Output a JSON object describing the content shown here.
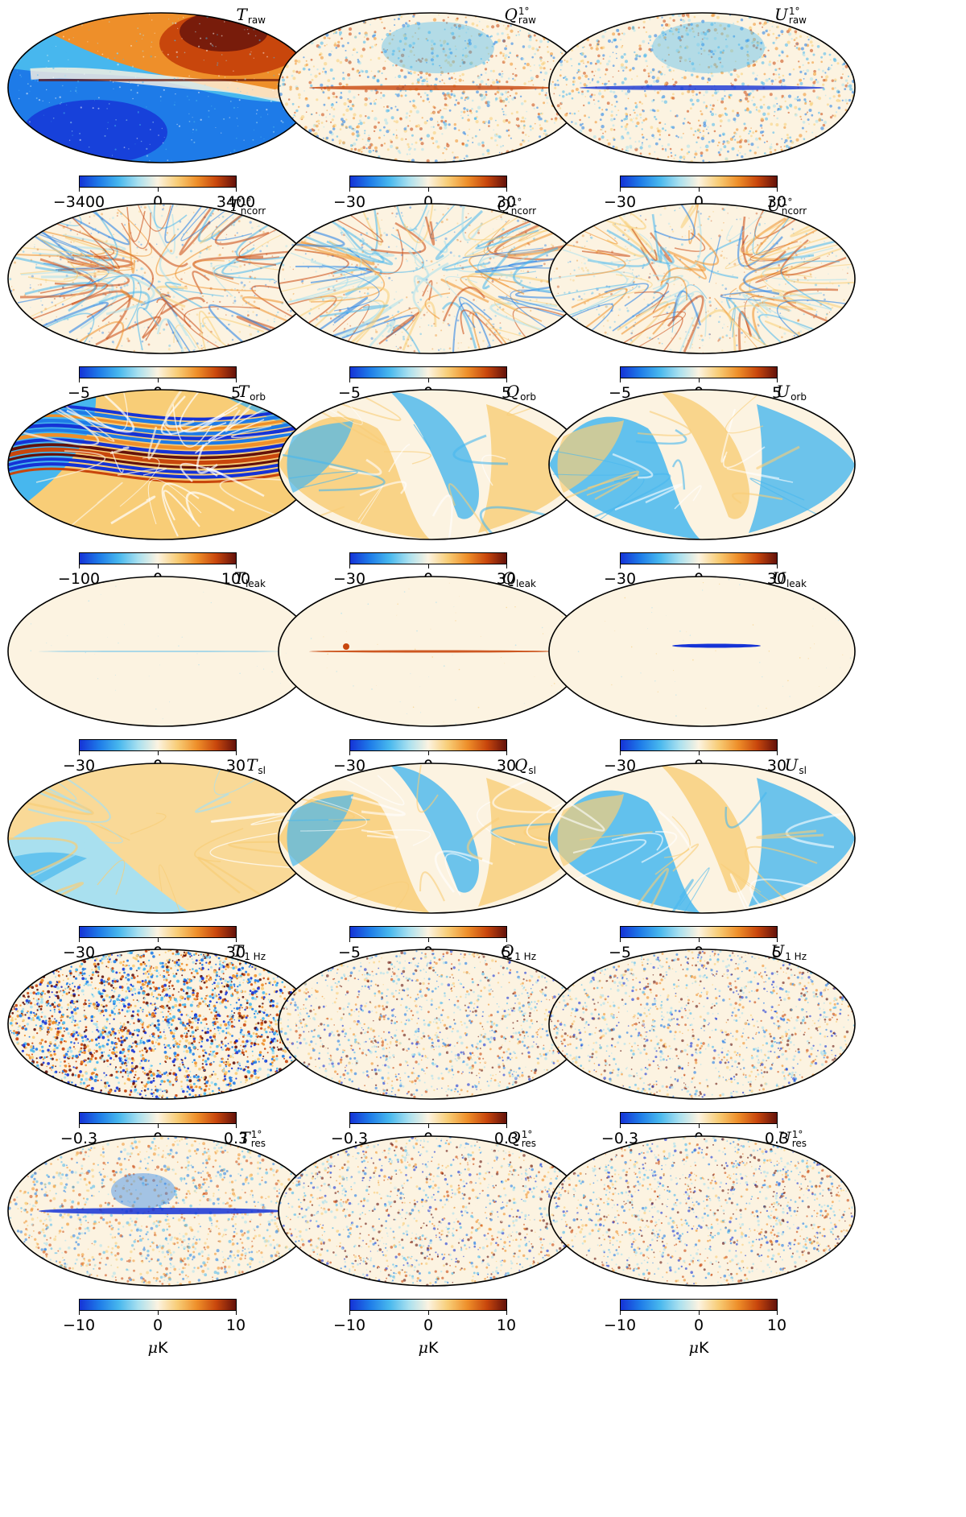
{
  "colorbar_gradient": [
    "#1533d6",
    "#1e7be8",
    "#47b7ee",
    "#a9e0ef",
    "#fcf3e1",
    "#f8cd77",
    "#ee8f2a",
    "#c8460c",
    "#64120b"
  ],
  "unit_label": "K",
  "unit_prefix": "μ",
  "rows": [
    {
      "row": "raw",
      "panels": [
        {
          "id": "T_raw",
          "symbol": "T",
          "subscript": "raw",
          "superscript": "",
          "ticks": [
            "−3400",
            "0",
            "3400"
          ],
          "style": "dipole"
        },
        {
          "id": "Q_raw",
          "symbol": "Q",
          "subscript": "raw",
          "superscript": "1°",
          "ticks": [
            "−30",
            "0",
            "30"
          ],
          "style": "noise-galactic"
        },
        {
          "id": "U_raw",
          "symbol": "U",
          "subscript": "raw",
          "superscript": "1°",
          "ticks": [
            "−30",
            "0",
            "30"
          ],
          "style": "noise-galactic-blue"
        }
      ]
    },
    {
      "row": "ncorr",
      "panels": [
        {
          "id": "T_ncorr",
          "symbol": "T",
          "subscript": "ncorr",
          "superscript": "1°",
          "ticks": [
            "−5",
            "0",
            "5"
          ],
          "style": "stripes"
        },
        {
          "id": "Q_ncorr",
          "symbol": "Q",
          "subscript": "ncorr",
          "superscript": "1°",
          "ticks": [
            "−5",
            "0",
            "5"
          ],
          "style": "stripes"
        },
        {
          "id": "U_ncorr",
          "symbol": "U",
          "subscript": "ncorr",
          "superscript": "1°",
          "ticks": [
            "−5",
            "0",
            "5"
          ],
          "style": "stripes"
        }
      ]
    },
    {
      "row": "orb",
      "panels": [
        {
          "id": "T_orb",
          "symbol": "T",
          "subscript": "orb",
          "superscript": "",
          "ticks": [
            "−100",
            "0",
            "100"
          ],
          "style": "orbital-strong"
        },
        {
          "id": "Q_orb",
          "symbol": "Q",
          "subscript": "orb",
          "superscript": "",
          "ticks": [
            "−30",
            "0",
            "30"
          ],
          "style": "lobes"
        },
        {
          "id": "U_orb",
          "symbol": "U",
          "subscript": "orb",
          "superscript": "",
          "ticks": [
            "−30",
            "0",
            "30"
          ],
          "style": "lobes-inv"
        }
      ]
    },
    {
      "row": "leak",
      "panels": [
        {
          "id": "T_leak",
          "symbol": "T",
          "subscript": "leak",
          "superscript": "",
          "ticks": [
            "−30",
            "0",
            "30"
          ],
          "style": "flat"
        },
        {
          "id": "Q_leak",
          "symbol": "Q",
          "subscript": "leak",
          "superscript": "",
          "ticks": [
            "−30",
            "0",
            "30"
          ],
          "style": "flat-plane-red"
        },
        {
          "id": "U_leak",
          "symbol": "U",
          "subscript": "leak",
          "superscript": "",
          "ticks": [
            "−30",
            "0",
            "30"
          ],
          "style": "flat-plane-blue"
        }
      ]
    },
    {
      "row": "sl",
      "panels": [
        {
          "id": "T_sl",
          "symbol": "T",
          "subscript": "sl",
          "superscript": "",
          "ticks": [
            "−30",
            "0",
            "30"
          ],
          "style": "lobes-sl"
        },
        {
          "id": "Q_sl",
          "symbol": "Q",
          "subscript": "sl",
          "superscript": "",
          "ticks": [
            "−5",
            "0",
            "5"
          ],
          "style": "lobes"
        },
        {
          "id": "U_sl",
          "symbol": "U",
          "subscript": "sl",
          "superscript": "",
          "ticks": [
            "−5",
            "0",
            "5"
          ],
          "style": "lobes-inv"
        }
      ]
    },
    {
      "row": "1hz",
      "panels": [
        {
          "id": "T_1Hz",
          "symbol": "T",
          "subscript": "1 Hz",
          "superscript": "",
          "ticks": [
            "−0.3",
            "0",
            "0.3"
          ],
          "style": "noise-strong"
        },
        {
          "id": "Q_1Hz",
          "symbol": "Q",
          "subscript": "1 Hz",
          "superscript": "",
          "ticks": [
            "−0.3",
            "0",
            "0.3"
          ],
          "style": "noise-medium"
        },
        {
          "id": "U_1Hz",
          "symbol": "U",
          "subscript": "1 Hz",
          "superscript": "",
          "ticks": [
            "−0.3",
            "0",
            "0.3"
          ],
          "style": "noise-medium"
        }
      ]
    },
    {
      "row": "res",
      "panels": [
        {
          "id": "T_res",
          "symbol": "T",
          "subscript": "res",
          "superscript": "1°",
          "ticks": [
            "−10",
            "0",
            "10"
          ],
          "style": "noise-plane-blue"
        },
        {
          "id": "Q_res",
          "symbol": "Q",
          "subscript": "res",
          "superscript": "1°",
          "ticks": [
            "−10",
            "0",
            "10"
          ],
          "style": "noise-medium"
        },
        {
          "id": "U_res",
          "symbol": "U",
          "subscript": "res",
          "superscript": "1°",
          "ticks": [
            "−10",
            "0",
            "10"
          ],
          "style": "noise-medium"
        }
      ]
    }
  ]
}
